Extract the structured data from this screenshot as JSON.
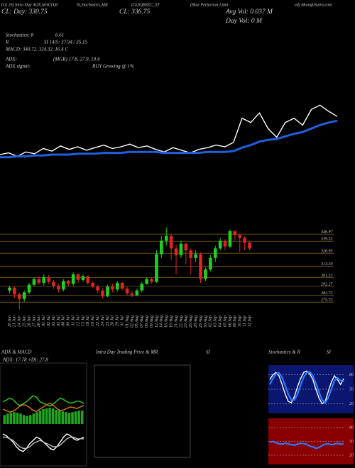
{
  "header": {
    "line1": [
      "(Gt 20) Intra Day ADX,MACD,R",
      "SI,Stochastics,MR",
      "(Gt20)BSEC_ST",
      "(Blue Perfection Limit",
      "ed) MunafaSutra.com"
    ],
    "close_day": "CL: Day: 330.75",
    "close": "CL: 336.75",
    "avg_vol": "Avg Vol: 0.037 M",
    "day_vol": "Day Vol: 0  M",
    "stoch_label": "Stochastics: 8",
    "stoch_value": "6.61",
    "rsi_label": "R",
    "rsi_value": "SI 14/5: 37.94 / 35.15",
    "macd": "MACD: 340.72, 324.32, 16.4 C",
    "adx_label": "ADX:",
    "adx_value": "(MGR) 17.8, 27.9, 19.4",
    "signal_label": "ADX  signal:",
    "signal_value": "BUY Growing @ 1%",
    "panels": [
      "ADX & MACD",
      "Intra Day Trading Price & MR",
      "SI",
      "Stochastics & R",
      "SI"
    ]
  },
  "chart_data": [
    {
      "type": "line",
      "ylim": [
        270,
        360
      ],
      "series": [
        {
          "color": "#ffffff",
          "values": [
            288,
            290,
            286,
            291,
            289,
            295,
            292,
            298,
            294,
            297,
            293,
            296,
            299,
            295,
            297,
            300,
            296,
            298,
            294,
            291,
            296,
            293,
            290,
            294,
            296,
            299,
            297,
            302,
            330,
            325,
            336,
            318,
            308,
            325,
            330,
            322,
            340,
            345,
            338,
            332
          ]
        },
        {
          "color": "#1f5fe0",
          "values": [
            285,
            285,
            286,
            286,
            287,
            287,
            288,
            288,
            288,
            289,
            289,
            289,
            290,
            290,
            290,
            291,
            291,
            291,
            291,
            290,
            290,
            290,
            290,
            290,
            291,
            291,
            291,
            292,
            296,
            299,
            303,
            305,
            306,
            309,
            312,
            314,
            318,
            322,
            325,
            327
          ]
        }
      ]
    },
    {
      "type": "candlestick",
      "ylim": [
        264,
        359
      ],
      "grid": true,
      "up_color": "#1fd11f",
      "down_color": "#e0241f",
      "yticks": [
        346.97,
        339.53,
        326.95,
        313.39,
        301.53,
        292.27,
        282.73,
        275.73
      ],
      "categories": [
        "20 Jun",
        "21 Jun",
        "24 Jun",
        "25 Jun",
        "26 Jun",
        "27 Jun",
        "28 Jun",
        "01 Jul",
        "02 Jul",
        "03 Jul",
        "05 Jul",
        "08 Jul",
        "09 Jul",
        "11 Jul",
        "12 Jul",
        "15 Jul",
        "18 Jul",
        "19 Jul",
        "22 Jul",
        "24 Jul",
        "25 Jul",
        "26 Jul",
        "29 Jul",
        "31 Jul",
        "01 Aug",
        "02 Aug",
        "05 Aug",
        "07 Aug",
        "08 Aug",
        "09 Aug",
        "12 Aug",
        "14 Aug",
        "16 Aug",
        "19 Aug",
        "21 Aug",
        "22 Aug",
        "23 Aug",
        "26 Aug",
        "28 Aug",
        "29 Aug",
        "30 Aug",
        "02 Sep",
        "03 Sep",
        "04 Sep",
        "05 Sep",
        "06 Sep",
        "09 Sep",
        "10 Sep",
        "11 Sep",
        "12 Sep"
      ],
      "open": [
        288,
        291,
        284,
        279,
        286,
        294,
        300,
        296,
        302,
        297,
        293,
        289,
        298,
        295,
        305,
        299,
        303,
        296,
        292,
        288,
        282,
        292,
        289,
        296,
        290,
        285,
        283,
        288,
        295,
        300,
        297,
        326,
        340,
        345,
        332,
        325,
        337,
        330,
        322,
        326,
        300,
        310,
        322,
        332,
        340,
        334,
        350,
        346,
        343,
        338
      ],
      "high": [
        293,
        292,
        286,
        288,
        296,
        302,
        303,
        305,
        304,
        299,
        295,
        300,
        299,
        307,
        306,
        305,
        304,
        298,
        294,
        290,
        294,
        295,
        298,
        297,
        292,
        288,
        290,
        297,
        302,
        302,
        330,
        345,
        354,
        347,
        336,
        340,
        338,
        332,
        330,
        328,
        312,
        325,
        335,
        343,
        342,
        352,
        351,
        348,
        345,
        340
      ],
      "low": [
        285,
        280,
        268,
        276,
        284,
        292,
        294,
        293,
        295,
        290,
        286,
        287,
        292,
        293,
        296,
        297,
        294,
        290,
        285,
        280,
        281,
        286,
        287,
        288,
        283,
        281,
        282,
        286,
        294,
        295,
        296,
        322,
        335,
        320,
        305,
        322,
        315,
        305,
        318,
        296,
        298,
        308,
        318,
        330,
        330,
        332,
        340,
        328,
        330,
        330
      ],
      "close": [
        291,
        284,
        279,
        286,
        294,
        300,
        296,
        302,
        297,
        293,
        289,
        298,
        295,
        305,
        299,
        303,
        296,
        292,
        288,
        282,
        292,
        289,
        296,
        290,
        285,
        283,
        288,
        295,
        300,
        297,
        326,
        340,
        345,
        332,
        325,
        337,
        330,
        322,
        326,
        300,
        310,
        322,
        332,
        340,
        334,
        350,
        346,
        343,
        338,
        332
      ]
    },
    {
      "type": "line",
      "subtitle": "ADX: 17.78 +DI: 27.8",
      "ylim": [
        0,
        60
      ],
      "bars": {
        "color": "#1fa51f",
        "values": [
          12,
          14,
          15,
          16,
          15,
          14,
          12,
          11,
          12,
          14,
          16,
          18,
          20,
          21,
          22,
          21,
          19,
          18,
          17,
          16,
          15,
          16,
          17,
          18,
          18
        ]
      },
      "series": [
        {
          "color": "#22d422",
          "values": [
            30,
            32,
            35,
            33,
            28,
            25,
            27,
            30,
            34,
            38,
            36,
            30,
            28,
            26,
            24,
            27,
            31,
            35,
            33,
            30,
            28,
            29,
            31,
            30,
            28
          ]
        },
        {
          "color": "#e07b1a",
          "values": [
            20,
            18,
            16,
            17,
            20,
            24,
            26,
            25,
            22,
            18,
            17,
            20,
            23,
            26,
            28,
            25,
            21,
            18,
            19,
            21,
            23,
            22,
            21,
            23,
            25
          ]
        }
      ]
    },
    {
      "type": "line",
      "ylim": [
        -10,
        10
      ],
      "series": [
        {
          "color": "#ffffff",
          "values": [
            6,
            5,
            3,
            1,
            -2,
            -4,
            -5,
            -3,
            0,
            2,
            4,
            3,
            1,
            -1,
            -3,
            -4,
            -2,
            1,
            4,
            6,
            5,
            3,
            2,
            3,
            4
          ]
        },
        {
          "color": "#bdbdbd",
          "values": [
            4,
            4,
            3,
            2,
            0,
            -2,
            -3,
            -3,
            -2,
            0,
            1,
            2,
            1,
            0,
            -1,
            -2,
            -2,
            -1,
            1,
            3,
            4,
            4,
            3,
            3,
            3
          ]
        }
      ]
    },
    {
      "type": "line",
      "ylim": [
        0,
        100
      ],
      "yticks": [
        80,
        50,
        20
      ],
      "background": "#0b1670",
      "series": [
        {
          "color": "#ffffff",
          "values": [
            70,
            80,
            85,
            78,
            60,
            40,
            25,
            22,
            35,
            55,
            72,
            85,
            88,
            82,
            70,
            50,
            32,
            20,
            25,
            45,
            65,
            78,
            70,
            60,
            72
          ]
        },
        {
          "color": "#2a7bff",
          "values": [
            60,
            72,
            82,
            84,
            75,
            58,
            40,
            28,
            28,
            40,
            58,
            75,
            85,
            86,
            78,
            62,
            44,
            28,
            22,
            32,
            50,
            68,
            74,
            68,
            66
          ]
        }
      ]
    },
    {
      "type": "line",
      "ylim": [
        0,
        100
      ],
      "yticks": [
        80,
        50,
        20
      ],
      "background": "#8a0000",
      "series": [
        {
          "color": "#2a7bff",
          "values": [
            48,
            50,
            47,
            45,
            44,
            46,
            45,
            43,
            42,
            44,
            46,
            45,
            44,
            40,
            38,
            35,
            37,
            41,
            44,
            45,
            43,
            44,
            46,
            44,
            45
          ]
        }
      ]
    }
  ]
}
